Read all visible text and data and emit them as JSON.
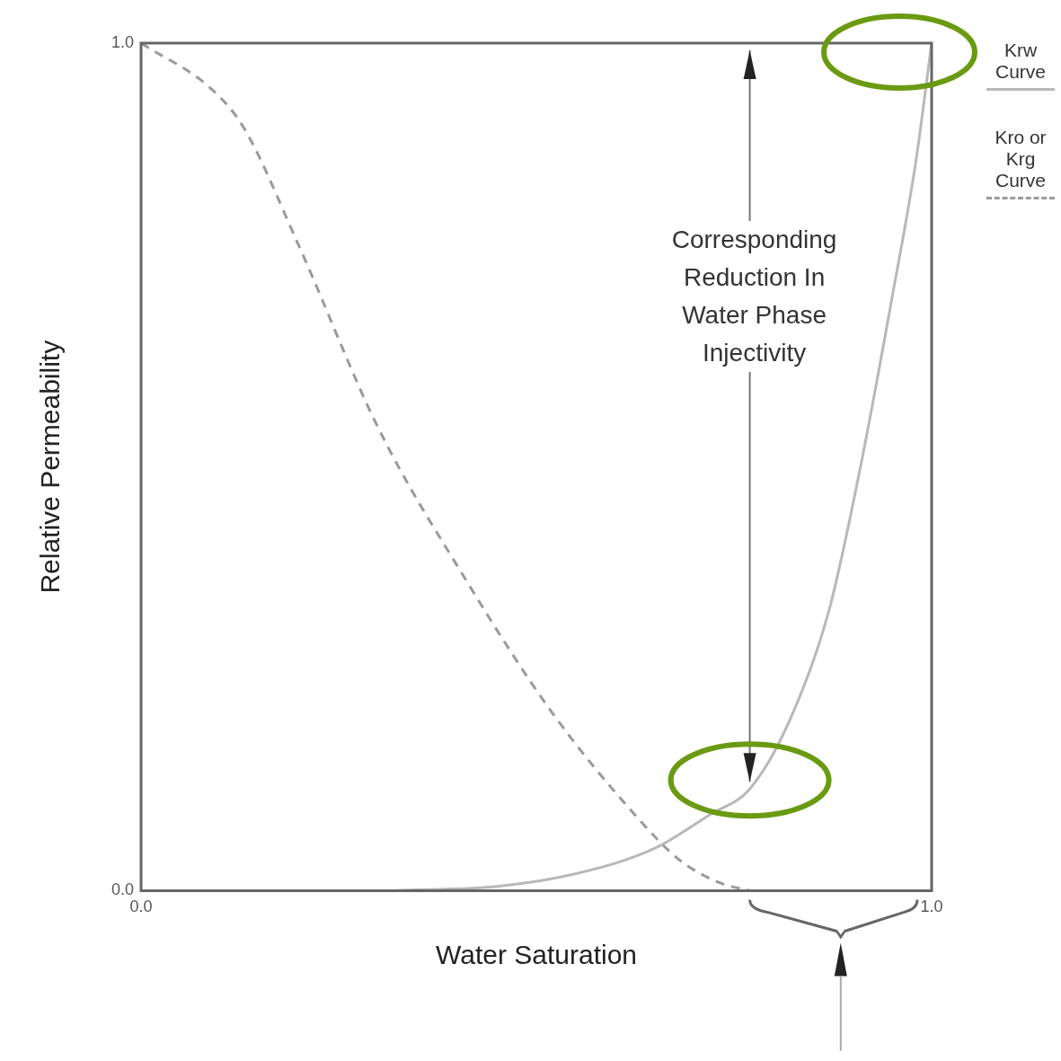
{
  "chart_data": {
    "type": "line",
    "xlabel": "Water Saturation",
    "ylabel": "Relative Permeability",
    "xlim": [
      0,
      1
    ],
    "ylim": [
      0,
      1
    ],
    "xticks": [
      {
        "value": 0,
        "label": "0.0"
      },
      {
        "value": 1,
        "label": "1.0"
      }
    ],
    "yticks": [
      {
        "value": 0,
        "label": "0.0"
      },
      {
        "value": 1,
        "label": "1.0"
      }
    ],
    "legend": "right",
    "marker": "none",
    "series": [
      {
        "name": "Krw Curve",
        "color": "#b8b8b8",
        "line_style": "solid",
        "x": [
          0.32,
          0.45,
          0.55,
          0.65,
          0.72,
          0.77,
          0.82,
          0.87,
          0.91,
          0.95,
          0.98,
          1.0
        ],
        "values": [
          0,
          0.005,
          0.02,
          0.05,
          0.09,
          0.12,
          0.2,
          0.33,
          0.5,
          0.7,
          0.86,
          1.0
        ]
      },
      {
        "name": "Kro or Krg Curve",
        "color": "#9a9a9a",
        "line_style": "dashed",
        "x": [
          0,
          0.09,
          0.13,
          0.2,
          0.3,
          0.41,
          0.52,
          0.63,
          0.68,
          0.73,
          0.77
        ],
        "values": [
          1,
          0.945,
          0.9,
          0.76,
          0.546,
          0.368,
          0.21,
          0.084,
          0.037,
          0.01,
          0
        ]
      }
    ],
    "ref_lines": [
      {
        "axis": "x",
        "value": 0.77,
        "label": "Corresponding Reduction In Water Phase Injectivity",
        "color": "#777777"
      }
    ]
  }
}
